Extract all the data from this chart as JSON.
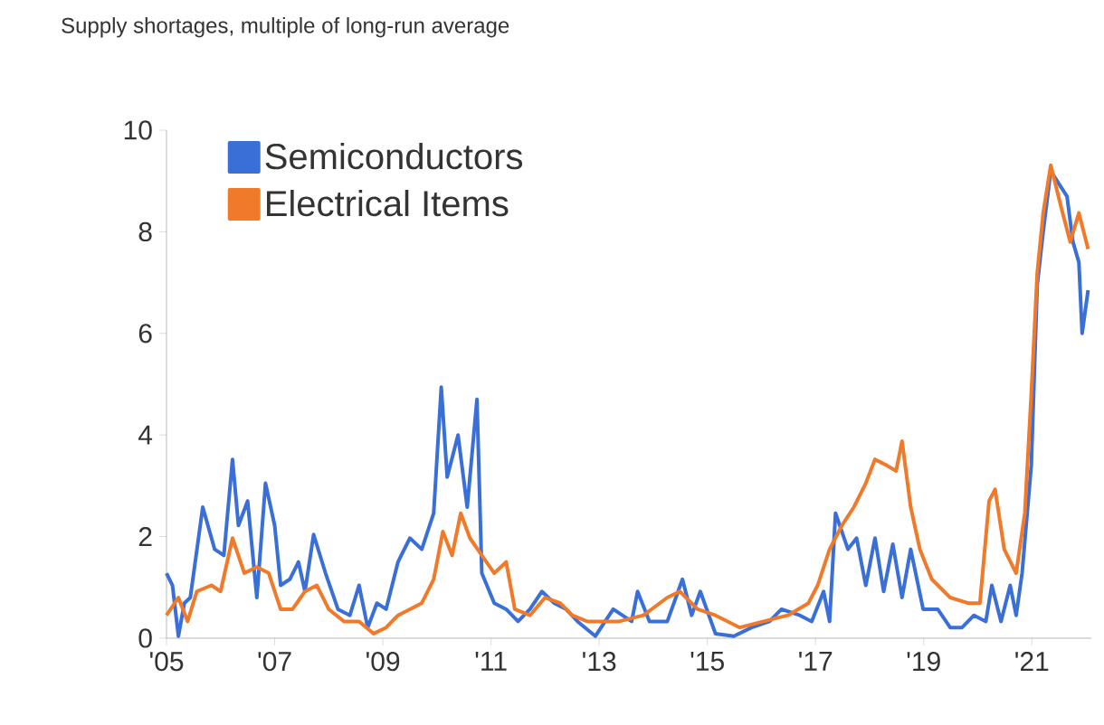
{
  "chart_data": {
    "type": "line",
    "title": "Supply shortages, multiple of long-run average",
    "legend": "top left",
    "xlim": [
      2005,
      2022.1
    ],
    "ylim": [
      0,
      10
    ],
    "yticks": [
      0,
      2,
      4,
      6,
      8,
      10
    ],
    "xticks": [
      {
        "value": 2005,
        "label": "'05"
      },
      {
        "value": 2007,
        "label": "'07"
      },
      {
        "value": 2009,
        "label": "'09"
      },
      {
        "value": 2011,
        "label": "'11"
      },
      {
        "value": 2013,
        "label": "'13"
      },
      {
        "value": 2015,
        "label": "'15"
      },
      {
        "value": 2017,
        "label": "'17"
      },
      {
        "value": 2019,
        "label": "'19"
      },
      {
        "value": 2021,
        "label": "'21"
      }
    ],
    "series": [
      {
        "name": "Semiconductors",
        "color": "#3a6fd8",
        "x": [
          2005.0,
          2005.11,
          2005.22,
          2005.33,
          2005.44,
          2005.67,
          2005.89,
          2006.06,
          2006.22,
          2006.33,
          2006.5,
          2006.67,
          2006.83,
          2007.0,
          2007.11,
          2007.28,
          2007.44,
          2007.56,
          2007.72,
          2007.94,
          2008.17,
          2008.39,
          2008.56,
          2008.72,
          2008.89,
          2009.06,
          2009.28,
          2009.5,
          2009.72,
          2009.94,
          2010.08,
          2010.19,
          2010.39,
          2010.56,
          2010.74,
          2010.83,
          2011.06,
          2011.28,
          2011.5,
          2011.72,
          2011.94,
          2012.17,
          2012.39,
          2012.6,
          2012.93,
          2013.26,
          2013.6,
          2013.71,
          2013.93,
          2014.26,
          2014.54,
          2014.71,
          2014.87,
          2015.15,
          2015.49,
          2015.82,
          2016.15,
          2016.37,
          2016.71,
          2016.93,
          2017.15,
          2017.26,
          2017.37,
          2017.6,
          2017.76,
          2017.93,
          2018.1,
          2018.26,
          2018.43,
          2018.6,
          2018.76,
          2018.99,
          2019.26,
          2019.49,
          2019.71,
          2019.93,
          2020.15,
          2020.26,
          2020.43,
          2020.6,
          2020.71,
          2020.82,
          2020.99,
          2021.1,
          2021.21,
          2021.35,
          2021.49,
          2021.65,
          2021.76,
          2021.87,
          2021.93,
          2022.04
        ],
        "values": [
          1.28,
          1.04,
          0.04,
          0.69,
          0.8,
          2.58,
          1.75,
          1.63,
          3.52,
          2.22,
          2.7,
          0.8,
          3.05,
          2.22,
          1.04,
          1.16,
          1.5,
          0.92,
          2.04,
          1.28,
          0.57,
          0.45,
          1.04,
          0.21,
          0.69,
          0.57,
          1.5,
          1.97,
          1.75,
          2.46,
          4.94,
          3.17,
          4.0,
          2.58,
          4.7,
          1.28,
          0.69,
          0.57,
          0.33,
          0.57,
          0.92,
          0.69,
          0.57,
          0.33,
          0.04,
          0.57,
          0.33,
          0.92,
          0.33,
          0.33,
          1.16,
          0.45,
          0.92,
          0.09,
          0.04,
          0.21,
          0.33,
          0.57,
          0.45,
          0.33,
          0.92,
          0.33,
          2.46,
          1.75,
          1.97,
          1.04,
          1.97,
          0.92,
          1.85,
          0.8,
          1.75,
          0.57,
          0.57,
          0.21,
          0.21,
          0.45,
          0.33,
          1.04,
          0.33,
          1.04,
          0.45,
          1.28,
          3.4,
          6.95,
          8.0,
          9.2,
          8.96,
          8.7,
          7.8,
          7.4,
          6.0,
          6.85
        ]
      },
      {
        "name": "Electrical Items",
        "color": "#f07a2a",
        "x": [
          2005.0,
          2005.22,
          2005.39,
          2005.56,
          2005.83,
          2006.0,
          2006.22,
          2006.44,
          2006.67,
          2006.89,
          2007.11,
          2007.33,
          2007.56,
          2007.78,
          2008.0,
          2008.28,
          2008.56,
          2008.83,
          2009.06,
          2009.28,
          2009.5,
          2009.72,
          2009.94,
          2010.11,
          2010.28,
          2010.44,
          2010.61,
          2010.83,
          2011.06,
          2011.28,
          2011.44,
          2011.72,
          2012.0,
          2012.28,
          2012.5,
          2012.78,
          2012.93,
          2013.37,
          2013.82,
          2014.26,
          2014.49,
          2014.82,
          2015.15,
          2015.6,
          2016.04,
          2016.49,
          2016.87,
          2017.04,
          2017.26,
          2017.49,
          2017.71,
          2017.93,
          2018.1,
          2018.32,
          2018.49,
          2018.6,
          2018.76,
          2018.93,
          2019.15,
          2019.49,
          2019.82,
          2020.04,
          2020.21,
          2020.32,
          2020.49,
          2020.71,
          2020.87,
          2020.99,
          2021.1,
          2021.21,
          2021.35,
          2021.54,
          2021.71,
          2021.87,
          2022.04
        ],
        "values": [
          0.45,
          0.8,
          0.33,
          0.92,
          1.04,
          0.92,
          1.97,
          1.28,
          1.4,
          1.28,
          0.57,
          0.57,
          0.92,
          1.04,
          0.57,
          0.33,
          0.33,
          0.09,
          0.21,
          0.45,
          0.57,
          0.69,
          1.16,
          2.1,
          1.63,
          2.46,
          1.97,
          1.63,
          1.28,
          1.5,
          0.57,
          0.45,
          0.8,
          0.69,
          0.45,
          0.33,
          0.33,
          0.33,
          0.45,
          0.8,
          0.92,
          0.57,
          0.45,
          0.21,
          0.33,
          0.45,
          0.69,
          1.04,
          1.75,
          2.22,
          2.58,
          3.05,
          3.52,
          3.4,
          3.29,
          3.88,
          2.58,
          1.75,
          1.16,
          0.8,
          0.69,
          0.69,
          2.7,
          2.93,
          1.75,
          1.28,
          2.46,
          4.82,
          7.19,
          8.37,
          9.31,
          8.49,
          7.8,
          8.37,
          7.66
        ]
      }
    ]
  }
}
